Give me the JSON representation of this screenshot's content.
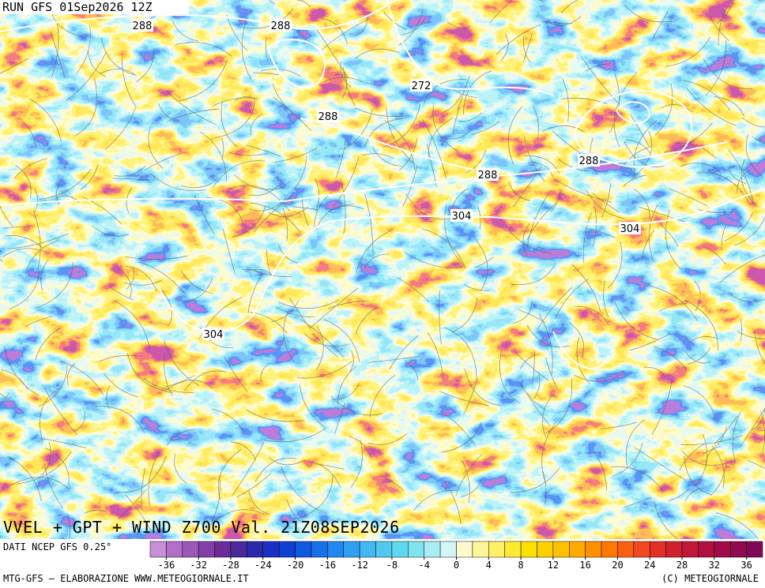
{
  "header": {
    "run": "RUN GFS 01Sep2026 12Z"
  },
  "map": {
    "contour_labels": [
      "288",
      "288",
      "272",
      "288",
      "288",
      "288",
      "304",
      "304",
      "304"
    ]
  },
  "title": "VVEL + GPT + WIND Z700 Val. 21Z08SEP2026",
  "source": "DATI NCEP GFS 0.25°",
  "colorbar": {
    "lim": [
      -38,
      38
    ],
    "ticks": [
      -36,
      -32,
      -28,
      -24,
      -20,
      -16,
      -12,
      -8,
      -4,
      0,
      4,
      8,
      12,
      16,
      20,
      24,
      28,
      32,
      36
    ],
    "colors": [
      "#c68fd6",
      "#b070c8",
      "#9a58b8",
      "#8040a8",
      "#6a2c98",
      "#4a2a9a",
      "#2a2aa8",
      "#1a30c0",
      "#1040d0",
      "#1058e0",
      "#1870e8",
      "#2088f0",
      "#30a0f0",
      "#40b8f0",
      "#50c8f0",
      "#60d8f0",
      "#80e4f0",
      "#a8eef4",
      "#d0f6f8",
      "#fffacc",
      "#fff59a",
      "#fff066",
      "#ffea33",
      "#ffe000",
      "#ffd000",
      "#ffc000",
      "#ffaa00",
      "#ff9000",
      "#ff7800",
      "#f86010",
      "#f04820",
      "#e03028",
      "#d02030",
      "#c01838",
      "#b01040",
      "#a00c48",
      "#900a50",
      "#800858"
    ]
  },
  "footer": {
    "left": "MTG-GFS — ELABORAZIONE WWW.METEOGIORNALE.IT",
    "right": "(C) METEOGIORNALE"
  }
}
